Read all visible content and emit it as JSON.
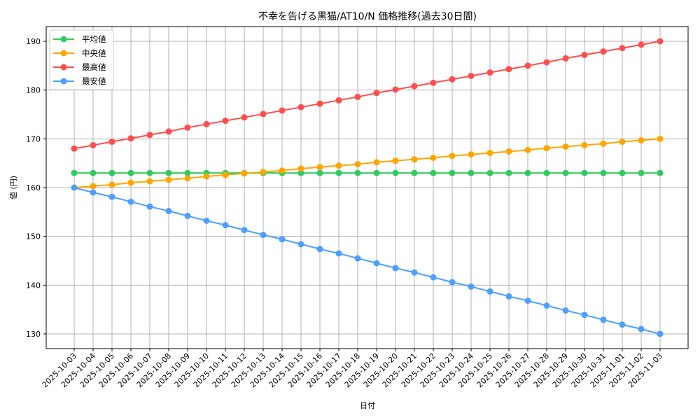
{
  "chart_data": {
    "type": "line",
    "title": "不幸を告げる黒猫/AT10/N 価格推移(過去30日間)",
    "xlabel": "日付",
    "ylabel": "値 (円)",
    "ylim": [
      127,
      193
    ],
    "yticks": [
      130,
      140,
      150,
      160,
      170,
      180,
      190
    ],
    "grid": true,
    "legend_position": "upper left",
    "x": [
      "2025-10-03",
      "2025-10-04",
      "2025-10-05",
      "2025-10-06",
      "2025-10-07",
      "2025-10-08",
      "2025-10-09",
      "2025-10-10",
      "2025-10-11",
      "2025-10-12",
      "2025-10-13",
      "2025-10-14",
      "2025-10-15",
      "2025-10-16",
      "2025-10-17",
      "2025-10-18",
      "2025-10-19",
      "2025-10-20",
      "2025-10-21",
      "2025-10-22",
      "2025-10-23",
      "2025-10-24",
      "2025-10-25",
      "2025-10-26",
      "2025-10-27",
      "2025-10-28",
      "2025-10-29",
      "2025-10-30",
      "2025-10-31",
      "2025-11-01",
      "2025-11-02",
      "2025-11-03"
    ],
    "series": [
      {
        "name": "平均値",
        "color": "#2ecc5f",
        "values": [
          163,
          163,
          163,
          163,
          163,
          163,
          163,
          163,
          163,
          163,
          163,
          163,
          163,
          163,
          163,
          163,
          163,
          163,
          163,
          163,
          163,
          163,
          163,
          163,
          163,
          163,
          163,
          163,
          163,
          163,
          163,
          163
        ]
      },
      {
        "name": "中央値",
        "color": "#ffa500",
        "values": [
          160,
          160.3,
          160.6,
          161,
          161.3,
          161.6,
          161.9,
          162.3,
          162.6,
          162.9,
          163.2,
          163.5,
          163.9,
          164.2,
          164.5,
          164.8,
          165.2,
          165.5,
          165.8,
          166.1,
          166.5,
          166.8,
          167.1,
          167.4,
          167.7,
          168.1,
          168.4,
          168.7,
          169,
          169.4,
          169.7,
          170
        ]
      },
      {
        "name": "最高値",
        "color": "#ff4d4d",
        "values": [
          168,
          168.7,
          169.4,
          170.1,
          170.8,
          171.5,
          172.3,
          173,
          173.7,
          174.4,
          175.1,
          175.8,
          176.5,
          177.2,
          177.9,
          178.6,
          179.4,
          180.1,
          180.8,
          181.5,
          182.2,
          182.9,
          183.6,
          184.3,
          185,
          185.7,
          186.5,
          187.2,
          187.9,
          188.6,
          189.3,
          190
        ]
      },
      {
        "name": "最安値",
        "color": "#4d9fff",
        "values": [
          160,
          159,
          158.1,
          157.1,
          156.1,
          155.2,
          154.2,
          153.2,
          152.3,
          151.3,
          150.3,
          149.4,
          148.4,
          147.4,
          146.5,
          145.5,
          144.5,
          143.5,
          142.6,
          141.6,
          140.6,
          139.7,
          138.7,
          137.7,
          136.8,
          135.8,
          134.8,
          133.9,
          132.9,
          131.9,
          131,
          130
        ]
      }
    ]
  }
}
